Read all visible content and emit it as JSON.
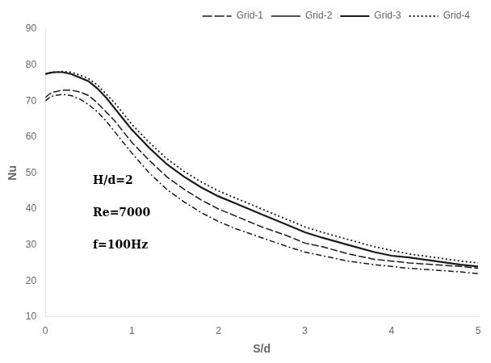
{
  "chart_data": {
    "type": "line",
    "xlabel": "S/d",
    "ylabel": "Nu",
    "xlim": [
      0,
      5
    ],
    "ylim": [
      10,
      90
    ],
    "xticks": [
      0,
      1,
      2,
      3,
      4,
      5
    ],
    "yticks": [
      10,
      20,
      30,
      40,
      50,
      60,
      70,
      80,
      90
    ],
    "grid": false,
    "legend": "upper right",
    "x": [
      0,
      0.05,
      0.1,
      0.2,
      0.3,
      0.4,
      0.5,
      0.6,
      0.7,
      0.8,
      0.9,
      1.0,
      1.2,
      1.4,
      1.6,
      1.8,
      2.0,
      2.2,
      2.5,
      2.8,
      3.0,
      3.2,
      3.5,
      3.8,
      4.0,
      4.2,
      4.5,
      4.8,
      5.0
    ],
    "series": [
      {
        "name": "Grid-1",
        "color": "#1a1a1a",
        "line_style": "dashdot",
        "values": [
          70.0,
          71.0,
          71.5,
          71.8,
          71.5,
          70.5,
          69.0,
          67.0,
          64.5,
          61.5,
          58.5,
          55.5,
          50.0,
          45.5,
          42.0,
          39.0,
          36.5,
          34.5,
          32.0,
          29.5,
          28.0,
          27.0,
          25.5,
          24.5,
          24.0,
          23.5,
          23.0,
          22.5,
          22.0
        ]
      },
      {
        "name": "Grid-2",
        "color": "#1a1a1a",
        "line_style": "dashed",
        "values": [
          71.0,
          72.0,
          72.5,
          73.0,
          73.0,
          72.5,
          71.5,
          69.5,
          67.0,
          64.5,
          61.5,
          58.5,
          53.5,
          49.0,
          45.5,
          42.5,
          40.0,
          38.0,
          35.0,
          32.5,
          30.5,
          29.5,
          27.5,
          26.0,
          25.5,
          25.0,
          24.5,
          24.0,
          23.5
        ]
      },
      {
        "name": "Grid-3",
        "color": "#1a1a1a",
        "line_style": "solid",
        "values": [
          77.5,
          77.8,
          78.0,
          78.0,
          77.5,
          76.5,
          75.5,
          73.5,
          71.0,
          68.0,
          65.0,
          62.0,
          57.0,
          52.5,
          49.0,
          46.0,
          43.5,
          41.5,
          38.5,
          35.5,
          33.5,
          32.0,
          30.0,
          28.0,
          27.0,
          26.5,
          25.5,
          24.5,
          24.0
        ]
      },
      {
        "name": "Grid-4",
        "color": "#1a1a1a",
        "line_style": "dotted",
        "values": [
          77.5,
          77.8,
          78.0,
          78.2,
          78.0,
          77.2,
          76.2,
          74.5,
          72.0,
          69.5,
          66.5,
          63.5,
          58.5,
          54.0,
          50.5,
          47.5,
          45.0,
          43.0,
          40.0,
          37.0,
          35.0,
          33.5,
          31.5,
          29.5,
          28.5,
          27.5,
          26.5,
          25.5,
          25.0
        ]
      }
    ],
    "annotations": [
      {
        "text": "H/d=2",
        "x": 0.55,
        "y": 47
      },
      {
        "text": "Re=7000",
        "x": 0.55,
        "y": 38
      },
      {
        "text": "f=100Hz",
        "x": 0.55,
        "y": 29
      }
    ]
  }
}
